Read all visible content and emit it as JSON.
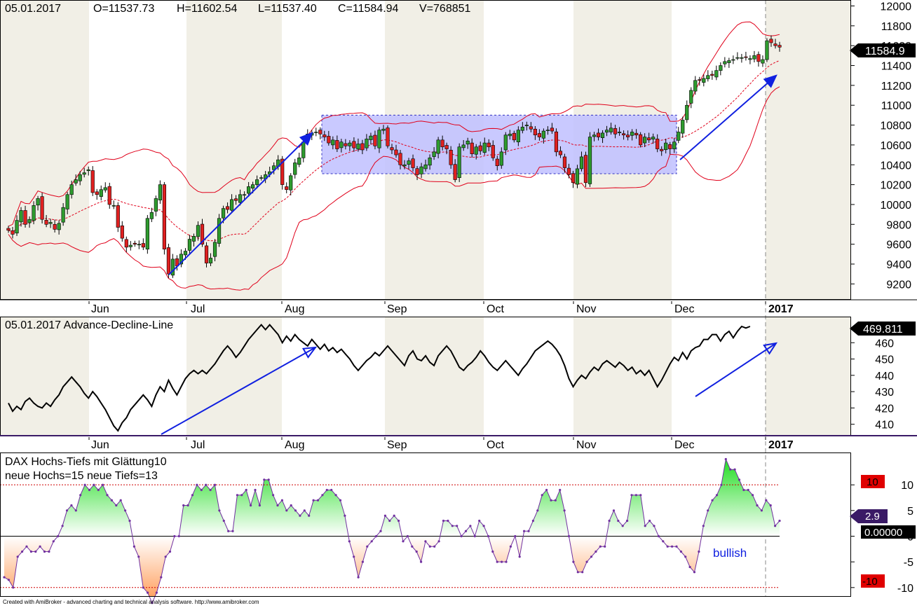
{
  "footer": "Created with AmiBroker - advanced charting and technical analysis software. http://www.amibroker.com",
  "colors": {
    "band": "#e0001a",
    "ad_line": "#000000",
    "arrow": "#1020e0",
    "bull_candle": "#2e9b2e",
    "bear_candle": "#e02020",
    "osc_line": "#7030a0",
    "range_box": "#c0c0ff",
    "shade_dark": "#efede4",
    "shade_light": "#f6f5ef"
  },
  "price_panel": {
    "header": {
      "date": "05.01.2017",
      "open": "O=11537.73",
      "high": "H=11602.54",
      "low": "L=11537.40",
      "close": "C=11584.94",
      "volume": "V=768851"
    },
    "last_value_label": "11584.9",
    "months": [
      "Jun",
      "Jul",
      "Aug",
      "Sep",
      "Oct",
      "Nov",
      "Dec",
      "2017"
    ]
  },
  "ad_panel": {
    "title": "05.01.2017 Advance-Decline-Line",
    "last_value_label": "469.811",
    "months": [
      "Jun",
      "Jul",
      "Aug",
      "Sep",
      "Oct",
      "Nov",
      "Dec",
      "2017"
    ]
  },
  "osc_panel": {
    "title_line1": "DAX Hochs-Tiefs mit Glättung10",
    "title_line2": "neue Hochs=15   neue Tiefs=13",
    "annotation": "bullish",
    "label_plus10": "10",
    "label_minus10": "-10",
    "last_value_label": "2.9",
    "zero_label": "0.00000"
  },
  "chart_data": [
    {
      "type": "candlestick",
      "title": "",
      "y_ticks": [
        9200,
        9400,
        9600,
        9800,
        10000,
        10200,
        10400,
        10600,
        10800,
        11000,
        11200,
        11400,
        11600,
        11800,
        12000
      ],
      "ylim": [
        9040,
        12060
      ],
      "x_month_labels": [
        "Jun",
        "Jul",
        "Aug",
        "Sep",
        "Oct",
        "Nov",
        "Dec",
        "2017"
      ],
      "close": [
        9740,
        9700,
        9840,
        9940,
        9800,
        9850,
        9990,
        10060,
        9850,
        9800,
        9820,
        9750,
        9810,
        9970,
        10100,
        10200,
        10250,
        10300,
        10320,
        10350,
        10120,
        10100,
        10150,
        10170,
        10000,
        9990,
        9770,
        9660,
        9570,
        9590,
        9600,
        9600,
        9570,
        9860,
        9920,
        10060,
        10200,
        9550,
        9300,
        9450,
        9380,
        9500,
        9530,
        9650,
        9680,
        9790,
        9600,
        9410,
        9460,
        9620,
        9860,
        9960,
        9950,
        10050,
        10040,
        10100,
        10100,
        10180,
        10200,
        10250,
        10270,
        10300,
        10330,
        10390,
        10450,
        10200,
        10150,
        10290,
        10420,
        10470,
        10630,
        10710,
        10720,
        10730,
        10710,
        10680,
        10620,
        10650,
        10560,
        10630,
        10590,
        10620,
        10570,
        10610,
        10550,
        10660,
        10690,
        10590,
        10750,
        10760,
        10590,
        10550,
        10500,
        10400,
        10400,
        10440,
        10370,
        10300,
        10380,
        10400,
        10470,
        10530,
        10650,
        10580,
        10560,
        10400,
        10250,
        10580,
        10600,
        10640,
        10510,
        10580,
        10540,
        10620,
        10580,
        10470,
        10390,
        10530,
        10700,
        10710,
        10650,
        10750,
        10780,
        10800,
        10760,
        10700,
        10680,
        10740,
        10750,
        10740,
        10530,
        10500,
        10370,
        10300,
        10220,
        10360,
        10480,
        10220,
        10680,
        10700,
        10680,
        10720,
        10750,
        10770,
        10710,
        10730,
        10700,
        10680,
        10730,
        10700,
        10600,
        10680,
        10650,
        10680,
        10560,
        10540,
        10620,
        10560,
        10630,
        10730,
        10850,
        11000,
        11150,
        11250,
        11250,
        11270,
        11300,
        11300,
        11350,
        11400,
        11440,
        11450,
        11460,
        11480,
        11480,
        11480,
        11470,
        11500,
        11440,
        11460,
        11650,
        11630,
        11600,
        11585
      ]
    },
    {
      "type": "line",
      "title": "Advance-Decline-Line",
      "y_ticks": [
        410,
        420,
        430,
        440,
        450,
        460
      ],
      "ylim": [
        403,
        476
      ],
      "x_month_labels": [
        "Jun",
        "Jul",
        "Aug",
        "Sep",
        "Oct",
        "Nov",
        "Dec",
        "2017"
      ],
      "values": [
        423,
        418,
        421,
        419,
        424,
        426,
        423,
        421,
        420,
        423,
        421,
        425,
        428,
        433,
        436,
        439,
        436,
        433,
        429,
        426,
        430,
        427,
        423,
        419,
        414,
        409,
        406,
        411,
        414,
        419,
        422,
        425,
        428,
        425,
        421,
        428,
        433,
        430,
        437,
        432,
        428,
        433,
        438,
        441,
        443,
        441,
        443,
        441,
        444,
        447,
        451,
        455,
        458,
        455,
        451,
        454,
        458,
        462,
        465,
        468,
        471,
        468,
        471,
        468,
        465,
        460,
        464,
        461,
        465,
        462,
        460,
        458,
        462,
        459,
        456,
        459,
        455,
        457,
        454,
        456,
        453,
        450,
        446,
        443,
        446,
        449,
        451,
        454,
        452,
        455,
        458,
        455,
        452,
        449,
        446,
        452,
        455,
        450,
        449,
        452,
        448,
        446,
        452,
        455,
        458,
        455,
        450,
        445,
        443,
        446,
        448,
        451,
        455,
        452,
        448,
        445,
        443,
        446,
        449,
        446,
        443,
        440,
        444,
        447,
        451,
        455,
        457,
        459,
        461,
        459,
        456,
        452,
        446,
        438,
        433,
        437,
        440,
        438,
        442,
        445,
        443,
        447,
        449,
        447,
        445,
        448,
        446,
        443,
        445,
        441,
        443,
        440,
        443,
        438,
        433,
        437,
        442,
        447,
        451,
        449,
        454,
        450,
        455,
        457,
        458,
        462,
        462,
        465,
        465,
        461,
        465,
        467,
        463,
        467,
        470,
        469,
        470
      ]
    },
    {
      "type": "area",
      "title": "DAX Hochs-Tiefs mit Glättung10",
      "y_ticks": [
        -10,
        -5,
        0,
        5,
        10
      ],
      "ylim": [
        -11.8,
        16.3
      ],
      "reference_lines": [
        10,
        0,
        -10
      ],
      "values": [
        -8,
        -8.5,
        -10,
        -4,
        -3,
        -2,
        -3,
        -3,
        -2,
        -3,
        -3,
        -1,
        0,
        2,
        5,
        6,
        5,
        8,
        10,
        9,
        10,
        9,
        10,
        8,
        7,
        6,
        7,
        5,
        3,
        -2,
        -4,
        -10,
        -11,
        -13,
        -11,
        -8,
        -4,
        -3,
        0,
        0,
        6,
        6,
        8,
        10,
        9,
        10,
        9,
        10,
        5,
        3,
        1,
        1,
        8,
        8,
        9,
        6,
        9,
        6,
        11,
        11,
        8,
        6,
        7,
        5,
        6,
        5,
        4,
        5,
        4,
        7,
        7,
        8,
        9,
        9,
        8,
        7,
        4,
        -1,
        -4,
        -8,
        -5,
        -2,
        -1,
        0,
        1,
        4,
        3,
        4,
        3,
        -1,
        0,
        -2,
        -3,
        -5,
        -1,
        -2,
        -2,
        -1,
        3,
        3,
        2,
        2,
        0,
        1,
        2,
        0,
        3,
        2,
        0,
        -3,
        -5,
        -5,
        -5,
        -2,
        0,
        -4,
        1,
        1,
        3,
        5,
        8,
        9,
        7,
        7,
        9,
        5,
        0,
        -5,
        -7,
        -7,
        -5,
        -4,
        -3,
        -2,
        -2,
        3,
        5,
        3,
        2,
        3,
        8,
        8,
        8,
        2,
        3,
        2,
        0,
        -1,
        -2,
        -2,
        -2,
        -3,
        -4,
        -6,
        -7,
        -3,
        2,
        5,
        7,
        8,
        10,
        15,
        13,
        13,
        11,
        9,
        9,
        8,
        6,
        5,
        7,
        6,
        2,
        3
      ]
    }
  ]
}
